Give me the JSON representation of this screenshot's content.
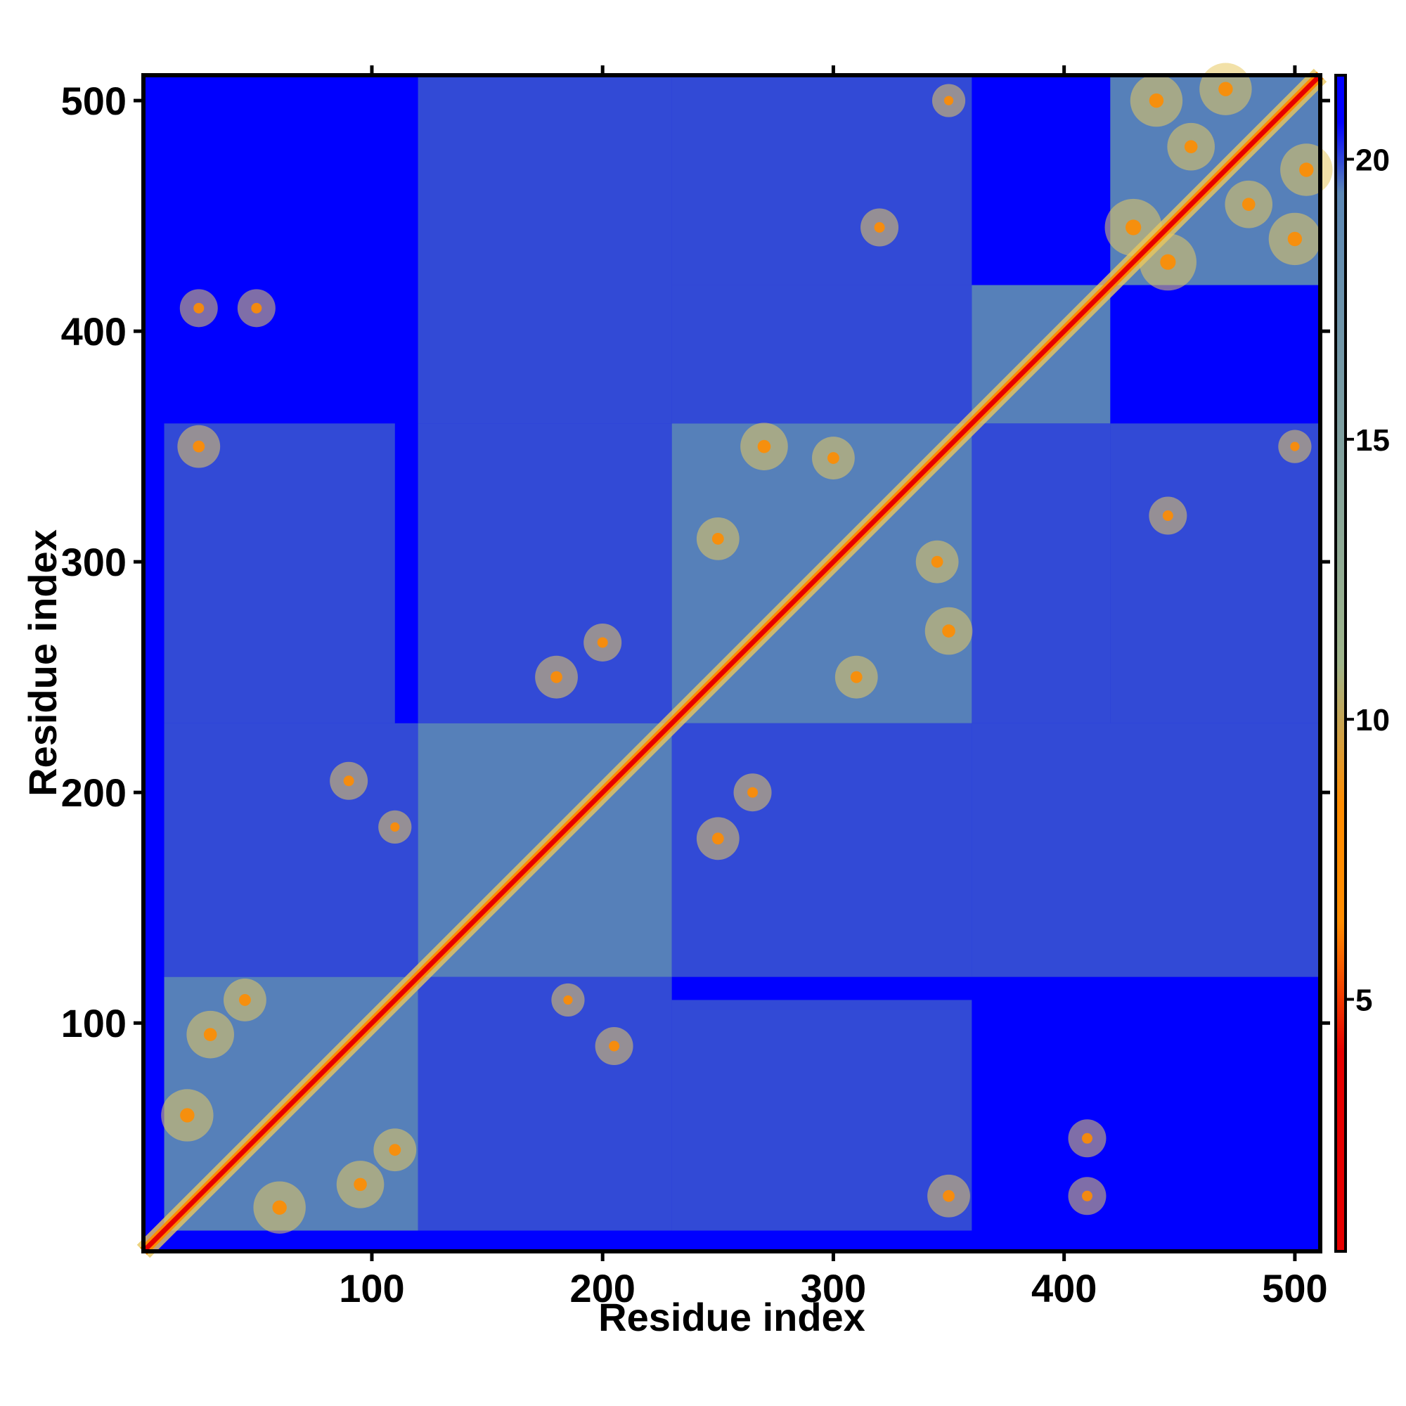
{
  "chart_data": {
    "type": "heatmap",
    "title": "",
    "xlabel": "Residue index",
    "ylabel": "Residue index",
    "n_residues": 511,
    "xlim": [
      1,
      511
    ],
    "ylim": [
      1,
      511
    ],
    "x_ticks": [
      "100",
      "200",
      "300",
      "400",
      "500"
    ],
    "x_tick_values": [
      100,
      200,
      300,
      400,
      500
    ],
    "y_ticks": [
      "100",
      "200",
      "300",
      "400",
      "500"
    ],
    "y_tick_values": [
      100,
      200,
      300,
      400,
      500
    ],
    "colorbar": {
      "ticks": [
        "5",
        "10",
        "15",
        "20"
      ],
      "tick_values": [
        5,
        10,
        15,
        20
      ],
      "range": [
        0.5,
        21.5
      ],
      "colors": {
        "near": "#e60000",
        "close": "#ff8c00",
        "mid": "#e8c860",
        "medium": "#9fb58a",
        "far": "#5b87b5",
        "farthest": "#0000ff"
      }
    },
    "domains": [
      {
        "start": 10,
        "end": 120
      },
      {
        "start": 120,
        "end": 230
      },
      {
        "start": 230,
        "end": 360
      },
      {
        "start": 360,
        "end": 420
      },
      {
        "start": 420,
        "end": 511
      }
    ],
    "off_diagonal_contacts": [
      {
        "from": 20,
        "to": 60,
        "strength": 0.8
      },
      {
        "from": 30,
        "to": 95,
        "strength": 0.7
      },
      {
        "from": 45,
        "to": 110,
        "strength": 0.6
      },
      {
        "from": 25,
        "to": 350,
        "strength": 0.6
      },
      {
        "from": 25,
        "to": 410,
        "strength": 0.5
      },
      {
        "from": 50,
        "to": 410,
        "strength": 0.5
      },
      {
        "from": 90,
        "to": 205,
        "strength": 0.5
      },
      {
        "from": 110,
        "to": 185,
        "strength": 0.4
      },
      {
        "from": 180,
        "to": 250,
        "strength": 0.6
      },
      {
        "from": 200,
        "to": 265,
        "strength": 0.5
      },
      {
        "from": 250,
        "to": 310,
        "strength": 0.6
      },
      {
        "from": 270,
        "to": 350,
        "strength": 0.7
      },
      {
        "from": 300,
        "to": 345,
        "strength": 0.6
      },
      {
        "from": 320,
        "to": 445,
        "strength": 0.5
      },
      {
        "from": 350,
        "to": 500,
        "strength": 0.4
      },
      {
        "from": 430,
        "to": 445,
        "strength": 0.9
      },
      {
        "from": 440,
        "to": 500,
        "strength": 0.8
      },
      {
        "from": 470,
        "to": 505,
        "strength": 0.8
      },
      {
        "from": 455,
        "to": 480,
        "strength": 0.7
      }
    ]
  }
}
